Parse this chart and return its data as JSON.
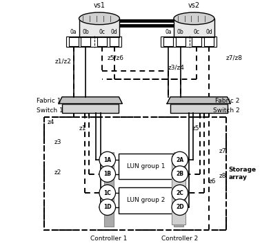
{
  "bg_color": "#ffffff",
  "vs1_label": "vs1",
  "vs2_label": "vs2",
  "fabric1_label": "Fabric 1",
  "fabric2_label": "Fabric 2",
  "switch1_label": "Switch 1",
  "switch2_label": "Switch 2",
  "storage_label": "Storage\narray",
  "controller1_label": "Controller 1",
  "controller2_label": "Controller 2",
  "lun1_label": "LUN group 1",
  "lun2_label": "LUN group 2",
  "ports_vs1": [
    "0a",
    "0b",
    "0c",
    "0d"
  ],
  "ports_vs2": [
    "0a",
    "0b",
    "0c",
    "0d"
  ],
  "zone_labels": {
    "z1z2": "z1/z2",
    "z5z6": "z5/z6",
    "z3z4": "z3/z4",
    "z7z8": "z7/z8",
    "z1": "z1",
    "z5": "z5",
    "z4": "z4",
    "z3": "z3",
    "z2": "z2",
    "z7": "z7",
    "z8": "z8",
    "z6": "z6"
  },
  "port_labels_left": [
    "1A",
    "1B",
    "1C",
    "1D"
  ],
  "port_labels_right": [
    "2A",
    "2B",
    "2C",
    "2D"
  ]
}
